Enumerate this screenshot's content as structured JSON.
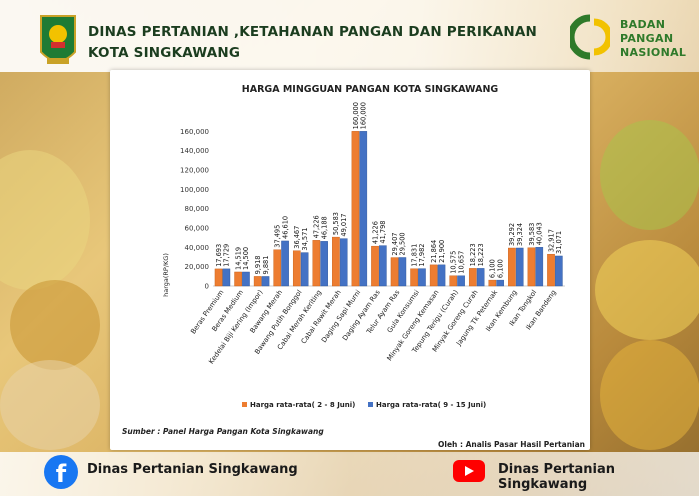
{
  "header": {
    "title_line1": "DINAS PERTANIAN ,KETAHANAN PANGAN DAN PERIKANAN",
    "title_line2": "KOTA SINGKAWANG",
    "agency_line1": "BADAN",
    "agency_line2": "PANGAN",
    "agency_line3": "NASIONAL"
  },
  "colors": {
    "series1": "#ED7D31",
    "series2": "#4472C4",
    "header_text": "#1b3d1f",
    "bpn_green": "#2f7a2a",
    "bpn_yellow": "#f2c200"
  },
  "chart_data": {
    "type": "bar",
    "title": "HARGA MINGGUAN PANGAN KOTA SINGKAWANG",
    "ylabel": "harga(RP/KG)",
    "xlabel": "",
    "ylim": [
      0,
      180000
    ],
    "yticks": [
      0,
      20000,
      40000,
      60000,
      80000,
      100000,
      120000,
      140000,
      160000
    ],
    "ytick_labels": [
      "0",
      "20,000",
      "40,000",
      "60,000",
      "80,000",
      "100,000",
      "120,000",
      "140,000",
      "160,000"
    ],
    "grid": false,
    "legend_position": "bottom",
    "categories": [
      "Beras Premium",
      "Beras Medium",
      "Kedelai Biji Kering (Impor)",
      "Bawang Merah",
      "Bawang Putih Bonggol",
      "Cabai Merah Keriting",
      "Cabai Rawit Merah",
      "Daging Sapi Murni",
      "Daging Ayam Ras",
      "Telur Ayam Ras",
      "Gula Konsumsi",
      "Minyak Goreng Kemasan",
      "Tepung Terigu (Curah)",
      "Minyak Goreng Curah",
      "Jagung Tk Peternak",
      "Ikan Kembung",
      "Ikan Tongkol",
      "Ikan Bandeng"
    ],
    "series": [
      {
        "name": "Harga rata-rata( 2 - 8 Juni)",
        "values": [
          17693,
          14519,
          9918,
          37495,
          36467,
          47226,
          50583,
          160000,
          41226,
          29407,
          17831,
          21864,
          10575,
          18223,
          6100,
          39292,
          39583,
          32917
        ],
        "labels": [
          "17,693",
          "14,519",
          "9,918",
          "37,495",
          "36,467",
          "47,226",
          "50,583",
          "160,000",
          "41,226",
          "29,407",
          "17,831",
          "21,864",
          "10,575",
          "18,223",
          "6,100",
          "39,292",
          "39,583",
          "32,917"
        ]
      },
      {
        "name": "Harga rata-rata( 9 - 15 Juni)",
        "values": [
          17729,
          14500,
          9881,
          46610,
          34571,
          46188,
          49017,
          160000,
          41798,
          29500,
          17982,
          21900,
          10657,
          18223,
          6100,
          39324,
          40043,
          31071
        ],
        "labels": [
          "17,729",
          "14,500",
          "9,881",
          "46,610",
          "34,571",
          "46,188",
          "49,017",
          "160,000",
          "41,798",
          "29,500",
          "17,982",
          "21,900",
          "10,657",
          "18,223",
          "6,100",
          "39,324",
          "40,043",
          "31,071"
        ]
      }
    ]
  },
  "source_text": "Sumber : Panel Harga Pangan Kota Singkawang",
  "credit_text": "Oleh : Analis Pasar Hasil Pertanian",
  "footer": {
    "facebook_label": "Dinas Pertanian Singkawang",
    "youtube_label": "Dinas Pertanian Singkawang"
  }
}
